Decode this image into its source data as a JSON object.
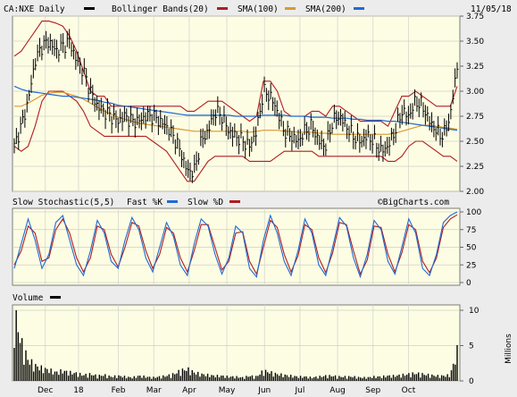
{
  "header": {
    "symbol_label": "CA:NXE Daily",
    "bollinger_label": "Bollinger Bands(20)",
    "sma100_label": "SMA(100)",
    "sma200_label": "SMA(200)",
    "date_label": "11/05/18",
    "legend_colors": {
      "price": "#000000",
      "bollinger": "#b01e1e",
      "sma100": "#b01e1e",
      "sma200": "#1f6ad6"
    }
  },
  "stoch_header": {
    "title": "Slow Stochastic(5,5)",
    "fast_label": "Fast %K",
    "slow_label": "Slow %D",
    "watermark": "©BigCharts.com",
    "fast_color": "#1f6ad6",
    "slow_color": "#b01e1e"
  },
  "volume_header": {
    "title": "Volume",
    "units": "Millions"
  },
  "chart_data": [
    {
      "type": "line",
      "name": "price",
      "x_ticks": [
        "Dec",
        "18",
        "Feb",
        "Mar",
        "Apr",
        "May",
        "Jun",
        "Jul",
        "Aug",
        "Sep",
        "Oct"
      ],
      "y_ticks": [
        "2.00",
        "2.25",
        "2.50",
        "2.75",
        "3.00",
        "3.25",
        "3.50",
        "3.75"
      ],
      "ylim": [
        2.0,
        3.75
      ],
      "series": [
        {
          "values": [
            2.45,
            2.65,
            2.9,
            3.3,
            3.45,
            3.5,
            3.4,
            3.45,
            3.5,
            3.3,
            3.2,
            3.0,
            2.85,
            2.8,
            2.75,
            2.7,
            2.75,
            2.7,
            2.7,
            2.75,
            2.75,
            2.7,
            2.65,
            2.55,
            2.4,
            2.2,
            2.2,
            2.5,
            2.6,
            2.8,
            2.75,
            2.6,
            2.55,
            2.5,
            2.45,
            2.6,
            3.0,
            2.95,
            2.8,
            2.6,
            2.55,
            2.5,
            2.6,
            2.65,
            2.5,
            2.45,
            2.7,
            2.75,
            2.65,
            2.55,
            2.5,
            2.55,
            2.5,
            2.4,
            2.45,
            2.6,
            2.8,
            2.75,
            2.9,
            2.85,
            2.7,
            2.6,
            2.55,
            2.75,
            3.25
          ]
        },
        {
          "name": "Bollinger Bands(20)",
          "values": [
            3.35,
            3.4,
            3.5,
            3.6,
            3.7,
            3.7,
            3.68,
            3.65,
            3.55,
            3.4,
            3.2,
            3.0,
            2.95,
            2.95,
            2.85,
            2.85,
            2.85,
            2.85,
            2.85,
            2.85,
            2.85,
            2.85,
            2.85,
            2.85,
            2.85,
            2.8,
            2.8,
            2.85,
            2.9,
            2.9,
            2.9,
            2.85,
            2.8,
            2.75,
            2.7,
            2.75,
            3.1,
            3.1,
            3.0,
            2.8,
            2.75,
            2.75,
            2.75,
            2.8,
            2.8,
            2.75,
            2.85,
            2.85,
            2.8,
            2.75,
            2.7,
            2.7,
            2.7,
            2.7,
            2.65,
            2.8,
            2.95,
            2.95,
            3.0,
            2.95,
            2.9,
            2.85,
            2.85,
            2.85,
            3.05
          ]
        },
        {
          "values": [
            2.45,
            2.4,
            2.45,
            2.65,
            2.9,
            3.0,
            3.0,
            3.0,
            2.95,
            2.9,
            2.8,
            2.65,
            2.6,
            2.55,
            2.55,
            2.55,
            2.55,
            2.55,
            2.55,
            2.55,
            2.5,
            2.45,
            2.4,
            2.3,
            2.2,
            2.1,
            2.1,
            2.2,
            2.3,
            2.35,
            2.35,
            2.35,
            2.35,
            2.35,
            2.3,
            2.3,
            2.3,
            2.3,
            2.35,
            2.4,
            2.4,
            2.4,
            2.4,
            2.4,
            2.35,
            2.35,
            2.35,
            2.35,
            2.35,
            2.35,
            2.35,
            2.35,
            2.35,
            2.35,
            2.3,
            2.3,
            2.35,
            2.45,
            2.5,
            2.5,
            2.45,
            2.4,
            2.35,
            2.35,
            2.3
          ]
        },
        {
          "name": "SMA(100)",
          "values": [
            2.85,
            2.85,
            2.88,
            2.92,
            2.96,
            2.98,
            2.99,
            2.99,
            2.97,
            2.95,
            2.92,
            2.88,
            2.84,
            2.8,
            2.77,
            2.74,
            2.72,
            2.7,
            2.68,
            2.67,
            2.66,
            2.65,
            2.64,
            2.63,
            2.62,
            2.61,
            2.6,
            2.6,
            2.6,
            2.6,
            2.6,
            2.6,
            2.6,
            2.6,
            2.59,
            2.6,
            2.61,
            2.61,
            2.61,
            2.6,
            2.6,
            2.59,
            2.59,
            2.59,
            2.58,
            2.58,
            2.57,
            2.57,
            2.57,
            2.57,
            2.57,
            2.57,
            2.57,
            2.57,
            2.57,
            2.58,
            2.6,
            2.62,
            2.64,
            2.66,
            2.66,
            2.65,
            2.64,
            2.63,
            2.62
          ]
        },
        {
          "name": "SMA(200)",
          "values": [
            3.05,
            3.02,
            3.0,
            2.99,
            2.98,
            2.97,
            2.96,
            2.95,
            2.95,
            2.94,
            2.93,
            2.92,
            2.91,
            2.89,
            2.88,
            2.86,
            2.85,
            2.84,
            2.83,
            2.82,
            2.81,
            2.8,
            2.79,
            2.78,
            2.77,
            2.76,
            2.76,
            2.76,
            2.76,
            2.76,
            2.76,
            2.76,
            2.75,
            2.75,
            2.75,
            2.75,
            2.76,
            2.76,
            2.76,
            2.76,
            2.75,
            2.75,
            2.75,
            2.74,
            2.74,
            2.74,
            2.73,
            2.73,
            2.73,
            2.72,
            2.72,
            2.71,
            2.71,
            2.71,
            2.7,
            2.7,
            2.69,
            2.68,
            2.67,
            2.66,
            2.65,
            2.64,
            2.63,
            2.62,
            2.61
          ]
        }
      ]
    },
    {
      "type": "line",
      "name": "stochastic",
      "y_ticks": [
        "0",
        "25",
        "50",
        "75",
        "100"
      ],
      "ylim": [
        0,
        100
      ],
      "series": [
        {
          "name": "Fast %K",
          "values": [
            20,
            55,
            90,
            60,
            20,
            40,
            85,
            95,
            60,
            25,
            10,
            45,
            88,
            70,
            30,
            20,
            60,
            92,
            75,
            35,
            15,
            50,
            85,
            65,
            25,
            10,
            55,
            90,
            80,
            40,
            12,
            35,
            80,
            70,
            20,
            8,
            60,
            95,
            70,
            30,
            10,
            45,
            90,
            70,
            25,
            10,
            50,
            92,
            80,
            35,
            8,
            40,
            88,
            75,
            30,
            12,
            50,
            90,
            70,
            20,
            10,
            40,
            85,
            95,
            100
          ]
        },
        {
          "name": "Slow %D",
          "values": [
            25,
            45,
            80,
            70,
            30,
            35,
            75,
            90,
            70,
            35,
            15,
            35,
            80,
            75,
            40,
            22,
            50,
            85,
            80,
            45,
            20,
            40,
            78,
            70,
            35,
            15,
            45,
            82,
            82,
            50,
            18,
            30,
            70,
            72,
            30,
            12,
            50,
            88,
            78,
            40,
            15,
            38,
            82,
            75,
            35,
            14,
            42,
            85,
            82,
            45,
            12,
            32,
            80,
            78,
            40,
            15,
            42,
            82,
            75,
            30,
            14,
            35,
            78,
            90,
            96
          ]
        }
      ]
    },
    {
      "type": "bar",
      "name": "volume",
      "y_ticks": [
        "0",
        "5",
        "10"
      ],
      "ylim": [
        0,
        10
      ],
      "ylabel": "Millions",
      "values": [
        8.5,
        4.5,
        2.5,
        1.8,
        1.5,
        1.3,
        1.0,
        1.2,
        1.0,
        0.9,
        0.7,
        0.8,
        0.6,
        0.7,
        0.5,
        0.6,
        0.5,
        0.4,
        0.6,
        0.5,
        0.4,
        0.5,
        0.6,
        0.8,
        1.2,
        1.4,
        1.0,
        0.8,
        0.7,
        0.6,
        0.6,
        0.5,
        0.5,
        0.4,
        0.6,
        0.5,
        1.2,
        1.0,
        0.8,
        0.7,
        0.6,
        0.5,
        0.5,
        0.4,
        0.5,
        0.6,
        0.6,
        0.5,
        0.5,
        0.5,
        0.4,
        0.4,
        0.5,
        0.5,
        0.6,
        0.6,
        0.7,
        0.8,
        0.9,
        0.8,
        0.7,
        0.6,
        0.6,
        0.7,
        3.5
      ]
    }
  ]
}
